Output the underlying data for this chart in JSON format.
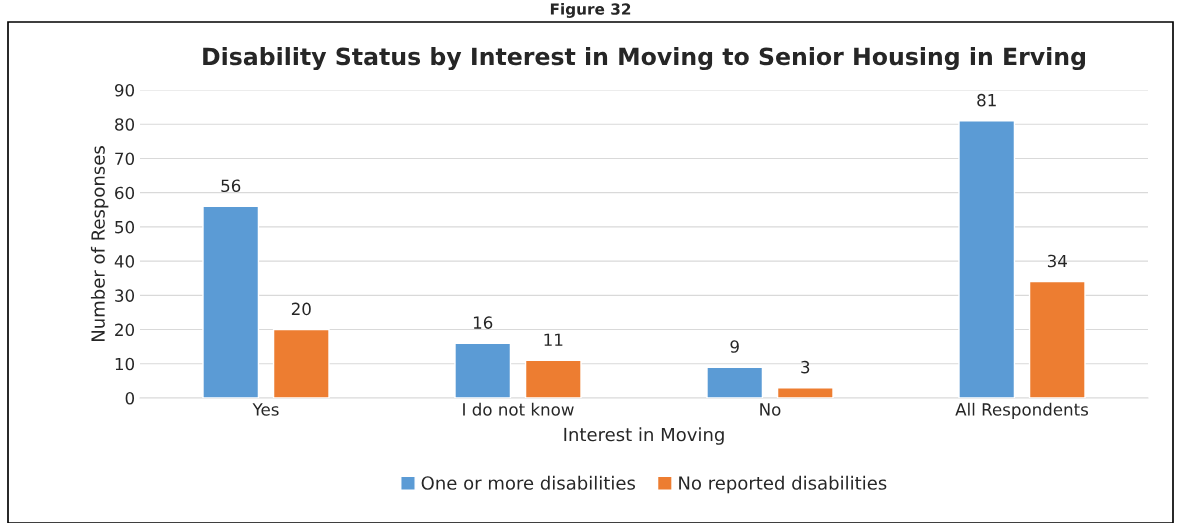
{
  "chart_data": {
    "type": "bar",
    "title": "Disability Status by Interest in Moving to Senior Housing in Erving",
    "xlabel": "Interest in Moving",
    "ylabel": "Number of Responses",
    "annotations": [
      "Figure 32"
    ],
    "categories": [
      "Yes",
      "I do not know",
      "No",
      "All Respondents"
    ],
    "series": [
      {
        "name": "One or more disabilities",
        "color": "#5b9bd5",
        "values": [
          56,
          16,
          9,
          81
        ]
      },
      {
        "name": "No reported disabilities",
        "color": "#ed7d31",
        "values": [
          20,
          11,
          3,
          34
        ]
      }
    ],
    "ylim": [
      0,
      90
    ],
    "yticks": [
      0,
      10,
      20,
      30,
      40,
      50,
      60,
      70,
      80,
      90
    ],
    "grid": "y",
    "legend": "bottom",
    "data_labels": true
  }
}
